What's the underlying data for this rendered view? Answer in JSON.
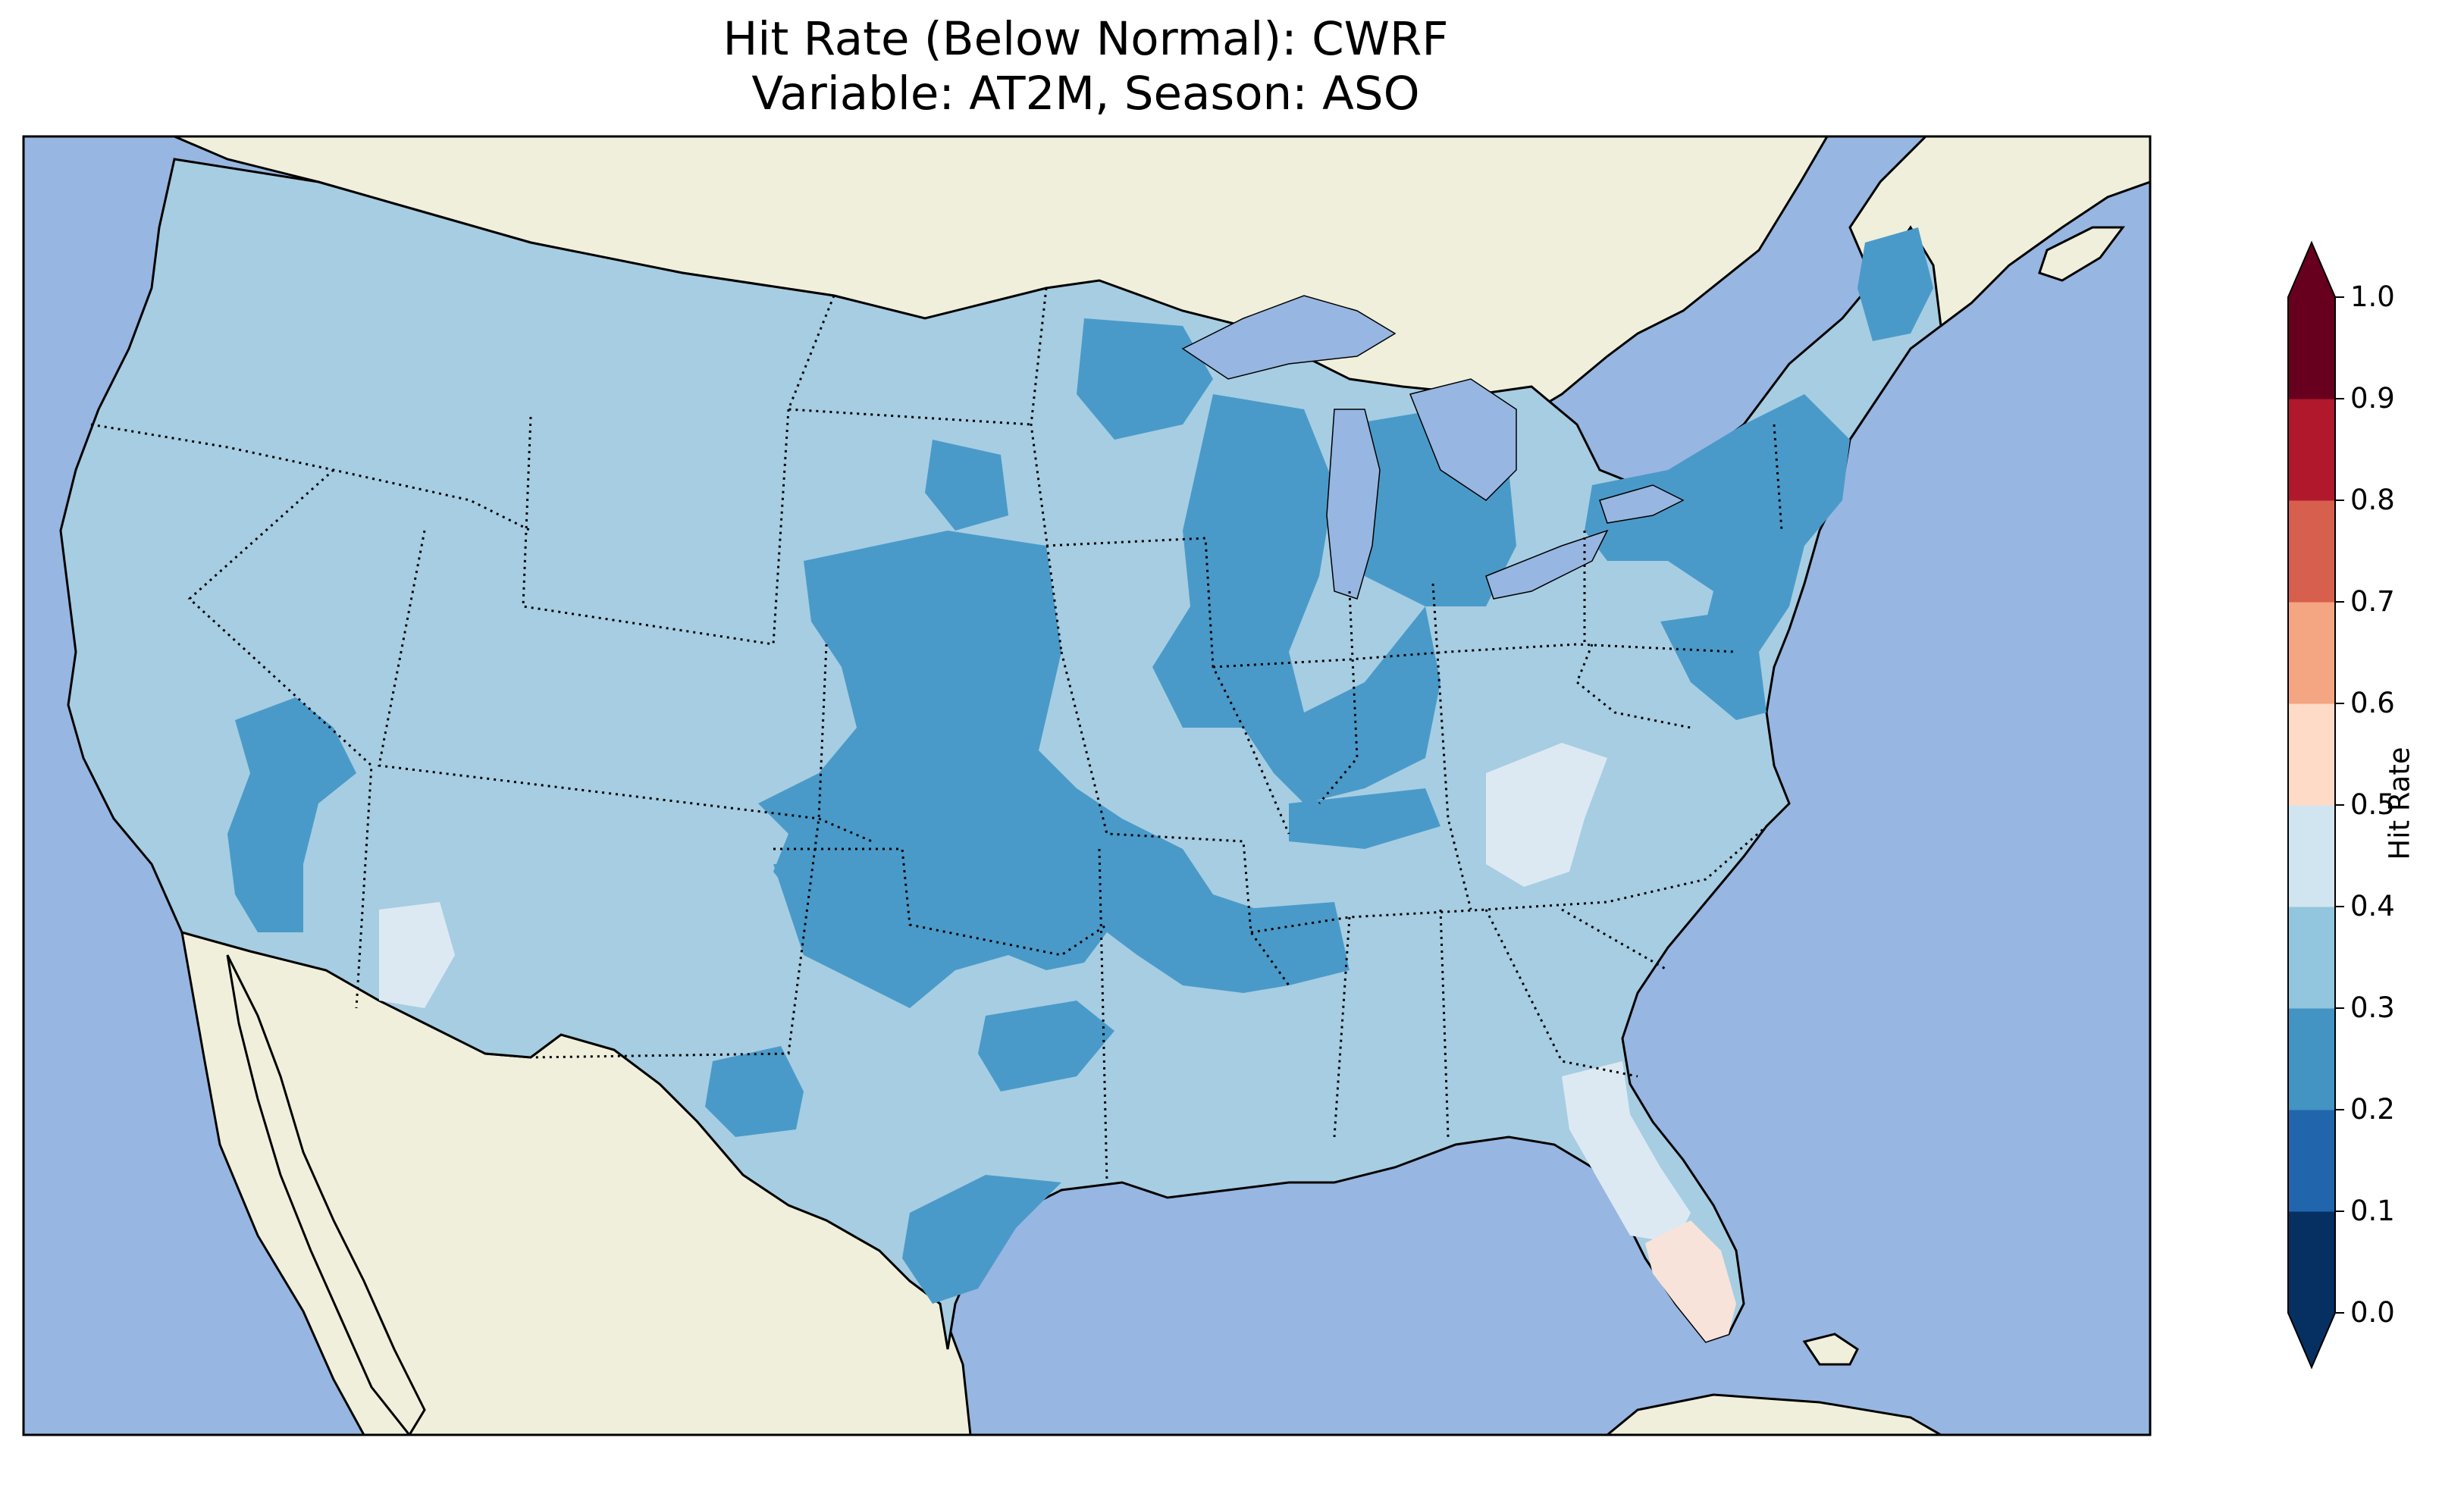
{
  "title": {
    "line1": "Hit Rate (Below Normal): CWRF",
    "line2": "Variable: AT2M, Season: ASO"
  },
  "map": {
    "projection": "Lambert Conformal",
    "domain": "Contiguous United States",
    "ocean_color": "#97b6e1",
    "land_color": "#efefdb",
    "field_variable": "Hit Rate",
    "dominant_values": "0.3-0.4 over most of CONUS; 0.2-0.3 over central plains, Midwest, Great Lakes, Northeast; 0.4-0.5 in parts of Appalachians and Florida; 0.5-0.6 in south Florida"
  },
  "colorbar": {
    "label": "Hit Rate",
    "ticks": [
      "0.0",
      "0.1",
      "0.2",
      "0.3",
      "0.4",
      "0.5",
      "0.6",
      "0.7",
      "0.8",
      "0.9",
      "1.0"
    ],
    "colors": [
      "#053061",
      "#2166ac",
      "#4393c3",
      "#92c5de",
      "#d1e5f0",
      "#fddbc7",
      "#f4a582",
      "#d6604d",
      "#b2182b",
      "#67001f"
    ],
    "extend": "both"
  }
}
